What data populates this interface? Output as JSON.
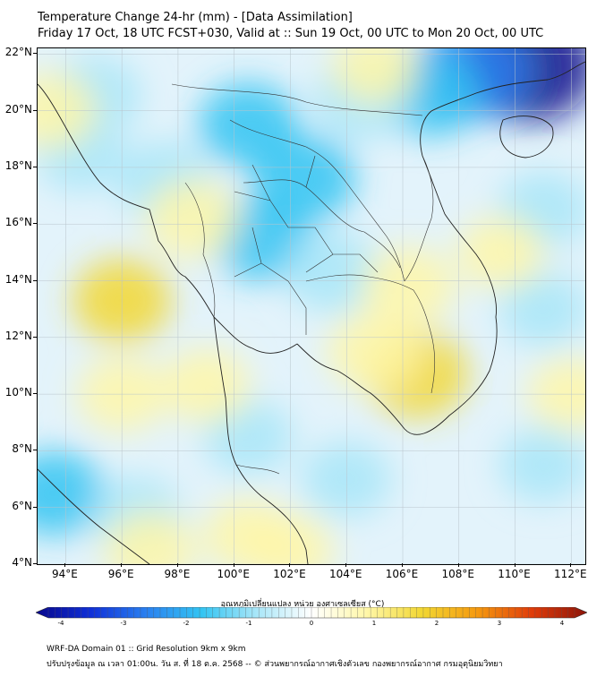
{
  "header": {
    "title_line1": "Temperature Change 24-hr (mm) - [Data Assimilation]",
    "title_line2": "Friday 17 Oct, 18 UTC FCST+030, Valid at :: Sun 19 Oct, 00 UTC to Mon 20 Oct, 00 UTC"
  },
  "map": {
    "lat_labels": [
      "22°N",
      "20°N",
      "18°N",
      "16°N",
      "14°N",
      "12°N",
      "10°N",
      "8°N",
      "6°N",
      "4°N"
    ],
    "lon_labels": [
      "94°E",
      "96°E",
      "98°E",
      "100°E",
      "102°E",
      "104°E",
      "106°E",
      "108°E",
      "110°E",
      "112°E"
    ],
    "lon_range": [
      93,
      112.5
    ],
    "lat_range": [
      4,
      22.2
    ],
    "gridlines": true
  },
  "colorbar": {
    "label": "อุณหภูมิเปลี่ยนแปลง หน่วย องศาเซลเซียส (°C)",
    "ticks": [
      "-4",
      "-3",
      "-2",
      "-1",
      "0",
      "1",
      "2",
      "3",
      "4"
    ],
    "range": [
      -4,
      4
    ],
    "colors": [
      "#08088c",
      "#1030d8",
      "#2a80f0",
      "#33c4f2",
      "#a8e6f8",
      "#ffffff",
      "#fff7a8",
      "#f2d733",
      "#f59a0f",
      "#e03c0a",
      "#8c1409"
    ]
  },
  "footer": {
    "line1": "WRF-DA Domain 01 :: Grid Resolution 9km x 9km",
    "line2": "ปรับปรุงข้อมูล ณ เวลา 01:00น. วัน ส. ที่ 18 ต.ค. 2568 -- © ส่วนพยากรณ์อากาศเชิงตัวเลข กองพยากรณ์อากาศ กรมอุตุนิยมวิทยา"
  },
  "anomaly_field": [
    {
      "lon": 110.5,
      "lat": 21.6,
      "value": -3.6
    },
    {
      "lon": 108.5,
      "lat": 21.4,
      "value": -2.4
    },
    {
      "lon": 107.0,
      "lat": 20.6,
      "value": -1.4
    },
    {
      "lon": 104.5,
      "lat": 20.4,
      "value": -1.0
    },
    {
      "lon": 100.5,
      "lat": 19.5,
      "value": -1.3
    },
    {
      "lon": 102.5,
      "lat": 17.6,
      "value": -1.5
    },
    {
      "lon": 101.0,
      "lat": 15.5,
      "value": -1.3
    },
    {
      "lon": 103.5,
      "lat": 14.3,
      "value": -1.0
    },
    {
      "lon": 95.0,
      "lat": 20.5,
      "value": -1.0
    },
    {
      "lon": 94.5,
      "lat": 18.5,
      "value": -0.6
    },
    {
      "lon": 97.5,
      "lat": 17.5,
      "value": -1.0
    },
    {
      "lon": 111.0,
      "lat": 16.5,
      "value": -0.7
    },
    {
      "lon": 111.0,
      "lat": 13.0,
      "value": -0.5
    },
    {
      "lon": 93.6,
      "lat": 6.5,
      "value": -1.3
    },
    {
      "lon": 96.5,
      "lat": 5.7,
      "value": -0.8
    },
    {
      "lon": 104.0,
      "lat": 7.0,
      "value": -0.6
    },
    {
      "lon": 111.0,
      "lat": 7.5,
      "value": -0.5
    },
    {
      "lon": 100.5,
      "lat": 8.5,
      "value": -0.6
    },
    {
      "lon": 96.0,
      "lat": 13.3,
      "value": 1.2
    },
    {
      "lon": 98.5,
      "lat": 16.2,
      "value": 0.9
    },
    {
      "lon": 106.5,
      "lat": 10.7,
      "value": 1.5
    },
    {
      "lon": 105.0,
      "lat": 11.5,
      "value": 1.0
    },
    {
      "lon": 106.2,
      "lat": 13.8,
      "value": 0.9
    },
    {
      "lon": 93.5,
      "lat": 20.0,
      "value": 0.7
    },
    {
      "lon": 96.0,
      "lat": 10.0,
      "value": 0.6
    },
    {
      "lon": 99.0,
      "lat": 10.3,
      "value": 0.5
    },
    {
      "lon": 97.0,
      "lat": 4.5,
      "value": 0.8
    },
    {
      "lon": 100.5,
      "lat": 5.0,
      "value": 0.6
    },
    {
      "lon": 102.0,
      "lat": 4.5,
      "value": 0.4
    },
    {
      "lon": 112.0,
      "lat": 10.0,
      "value": 0.4
    },
    {
      "lon": 109.5,
      "lat": 15.0,
      "value": 0.4
    },
    {
      "lon": 105.0,
      "lat": 21.5,
      "value": 0.4
    }
  ]
}
